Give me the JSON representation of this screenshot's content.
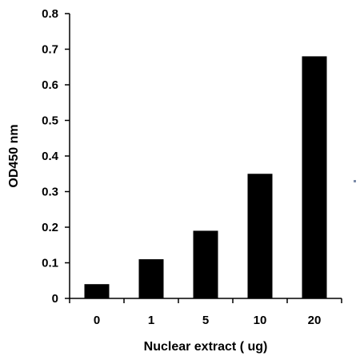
{
  "chart_data": {
    "type": "bar",
    "categories": [
      "0",
      "1",
      "5",
      "10",
      "20"
    ],
    "values": [
      0.04,
      0.11,
      0.19,
      0.35,
      0.68
    ],
    "xlabel": "Nuclear extract ( ug)",
    "ylabel": "OD450 nm",
    "ylim": [
      0,
      0.8
    ],
    "yticks": [
      "0",
      "0.1",
      "0.2",
      "0.3",
      "0.4",
      "0.5",
      "0.6",
      "0.7",
      "0.8"
    ],
    "grid": false,
    "legend": "none",
    "bar_color": "#000000",
    "marker_color": "#7a8aa8"
  }
}
